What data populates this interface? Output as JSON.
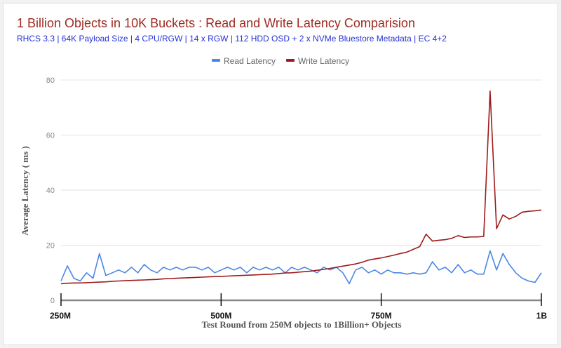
{
  "chart_data": {
    "type": "line",
    "title": "1 Billion Objects in 10K Buckets : Read and Write Latency Comparision",
    "subtitle": "RHCS 3.3 | 64K  Payload Size | 4 CPU/RGW | 14 x RGW | 112 HDD OSD + 2 x NVMe Bluestore Metadata | EC 4+2",
    "xlabel": "Test Round from 250M objects to 1Billion+ Objects",
    "ylabel": "Average Latency ( ms )",
    "xlim": [
      250,
      1000
    ],
    "ylim": [
      0,
      80
    ],
    "y_ticks": [
      0,
      20,
      40,
      60,
      80
    ],
    "x_ticks": [
      {
        "value": 250,
        "label": "250M"
      },
      {
        "value": 500,
        "label": "500M"
      },
      {
        "value": 750,
        "label": "750M"
      },
      {
        "value": 1000,
        "label": "1B"
      }
    ],
    "grid": true,
    "legend_position": "top",
    "x_start": 250,
    "x_step": 10,
    "series": [
      {
        "name": "Read Latency",
        "color": "#4a86e8",
        "values": [
          7,
          12.5,
          8,
          7,
          10,
          8,
          17,
          9,
          10,
          11,
          10,
          12,
          10,
          13,
          11,
          10,
          12,
          11,
          12,
          11,
          12,
          12,
          11,
          12,
          10,
          11,
          12,
          11,
          12,
          10,
          12,
          11,
          12,
          11,
          12,
          10,
          12,
          11,
          12,
          11,
          10,
          12,
          11,
          12,
          10,
          6,
          11,
          12,
          10,
          11,
          9.5,
          11,
          10,
          10,
          9.5,
          10,
          9.5,
          10,
          14,
          11,
          12,
          10,
          13,
          10,
          11,
          9.5,
          9.5,
          18,
          11,
          17,
          13,
          10,
          8,
          7,
          6.5,
          10
        ]
      },
      {
        "name": "Write Latency",
        "color": "#9e1b1b",
        "values": [
          6,
          6.2,
          6.3,
          6.3,
          6.4,
          6.5,
          6.6,
          6.7,
          6.9,
          7,
          7.1,
          7.2,
          7.3,
          7.4,
          7.5,
          7.6,
          7.8,
          7.9,
          8,
          8.1,
          8.2,
          8.3,
          8.4,
          8.5,
          8.6,
          8.7,
          8.8,
          8.9,
          9,
          9.1,
          9.2,
          9.3,
          9.4,
          9.5,
          9.7,
          9.9,
          10,
          10.2,
          10.4,
          10.6,
          10.9,
          11.2,
          11.6,
          12,
          12.4,
          12.8,
          13.2,
          13.8,
          14.6,
          15,
          15.4,
          15.9,
          16.4,
          17,
          17.5,
          18.5,
          19.5,
          24,
          21.5,
          21.8,
          22,
          22.5,
          23.5,
          22.8,
          23,
          23,
          23.2,
          76,
          26,
          31,
          29.5,
          30.5,
          32,
          32.3,
          32.5,
          32.8
        ]
      }
    ]
  }
}
